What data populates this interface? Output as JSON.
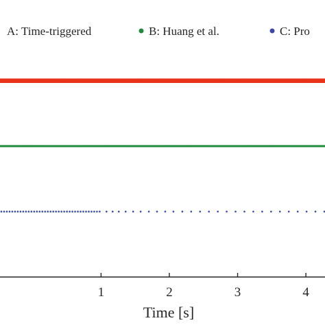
{
  "chart_data": {
    "type": "scatter",
    "title": "",
    "xlabel": "Time [s]",
    "ylabel": "",
    "xlim": [
      -0.5,
      4.3
    ],
    "ylim": [
      0,
      3.5
    ],
    "x_ticks": [
      1,
      2,
      3,
      4
    ],
    "x_tick_labels": [
      "1",
      "2",
      "3",
      "4"
    ],
    "grid": false,
    "legend_position": "top",
    "series": [
      {
        "name": "A: Time-triggered",
        "color": "#e8341c",
        "y": 3,
        "x_start": -0.5,
        "x_end": 4.3,
        "x_step": 0.005
      },
      {
        "name": "B: Huang et al.",
        "color": "#1e8a3a",
        "y": 2,
        "x_start": -0.5,
        "x_end": 4.3,
        "x_step": 0.01
      },
      {
        "name": "C: Pro",
        "color": "#3b48a6",
        "dense_x_start": -0.5,
        "dense_x_end": 1.0,
        "dense_x_step": 0.04,
        "y": 1,
        "x": [
          1.08,
          1.17,
          1.26,
          1.36,
          1.47,
          1.58,
          1.7,
          1.82,
          1.94,
          2.06,
          2.19,
          2.32,
          2.45,
          2.58,
          2.71,
          2.84,
          2.97,
          3.1,
          3.23,
          3.36,
          3.49,
          3.62,
          3.75,
          3.88,
          4.01,
          4.14,
          4.27
        ]
      }
    ]
  }
}
